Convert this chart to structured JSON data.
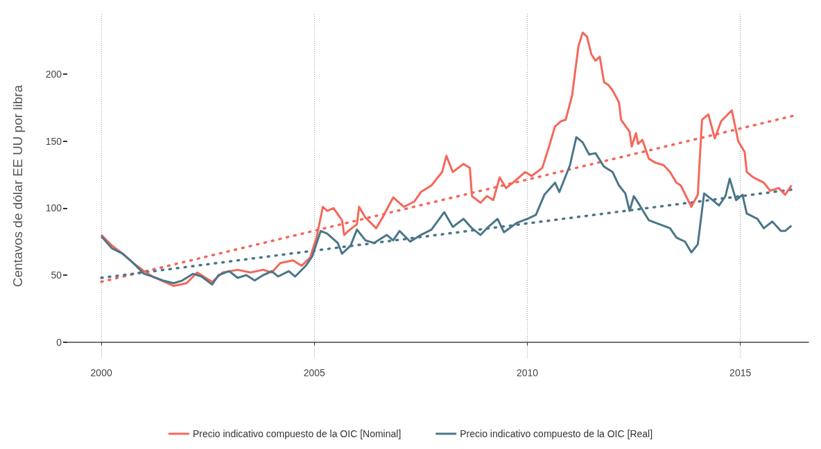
{
  "chart_data": {
    "type": "line",
    "ylabel": "Centavos de dólar EE UU por libra",
    "xlim": [
      1999.2,
      2016.6
    ],
    "xticks": [
      2000,
      2005,
      2010,
      2015
    ],
    "ylim": [
      -12,
      245
    ],
    "yticks": [
      0,
      50,
      100,
      150,
      200
    ],
    "grid": "x",
    "legend": "bottom",
    "marker": "none",
    "series": [
      {
        "name": "Precio indicativo compuesto de la OIC [Nominal]",
        "color": "#f4675a",
        "line_style": "solid",
        "x": [
          2000.0,
          2000.25,
          2000.5,
          2000.75,
          2001.0,
          2001.2,
          2001.55,
          2001.7,
          2002.0,
          2002.25,
          2002.6,
          2002.85,
          2003.2,
          2003.5,
          2003.8,
          2004.0,
          2004.2,
          2004.5,
          2004.7,
          2004.9,
          2005.05,
          2005.2,
          2005.3,
          2005.45,
          2005.65,
          2005.7,
          2005.8,
          2006.0,
          2006.05,
          2006.2,
          2006.45,
          2006.6,
          2006.85,
          2007.1,
          2007.35,
          2007.5,
          2007.75,
          2008.0,
          2008.1,
          2008.25,
          2008.5,
          2008.65,
          2008.7,
          2008.9,
          2009.05,
          2009.2,
          2009.35,
          2009.5,
          2009.7,
          2009.95,
          2010.1,
          2010.35,
          2010.5,
          2010.65,
          2010.8,
          2010.9,
          2011.05,
          2011.2,
          2011.3,
          2011.4,
          2011.5,
          2011.6,
          2011.7,
          2011.8,
          2011.9,
          2012.0,
          2012.15,
          2012.2,
          2012.4,
          2012.45,
          2012.55,
          2012.6,
          2012.7,
          2012.85,
          2013.0,
          2013.2,
          2013.35,
          2013.5,
          2013.6,
          2013.85,
          2014.0,
          2014.1,
          2014.25,
          2014.4,
          2014.55,
          2014.8,
          2014.95,
          2015.1,
          2015.15,
          2015.3,
          2015.55,
          2015.7,
          2015.9,
          2016.05,
          2016.2
        ],
        "values": [
          80,
          72,
          66,
          59,
          53,
          49,
          44,
          42,
          44,
          52,
          45,
          52,
          54,
          52,
          54,
          52,
          59,
          61,
          57,
          63,
          78,
          101,
          98,
          100,
          91,
          80,
          83,
          88,
          101,
          93,
          85,
          93,
          108,
          101,
          105,
          112,
          117,
          127,
          139,
          127,
          133,
          130,
          109,
          104,
          109,
          106,
          123,
          115,
          120,
          127,
          124,
          130,
          145,
          161,
          165,
          166,
          184,
          221,
          231,
          228,
          215,
          210,
          213,
          194,
          192,
          188,
          179,
          166,
          157,
          146,
          156,
          148,
          151,
          137,
          134,
          132,
          127,
          119,
          117,
          101,
          110,
          166,
          170,
          152,
          165,
          173,
          150,
          142,
          127,
          123,
          119,
          113,
          115,
          110,
          117
        ]
      },
      {
        "name": "Precio indicativo compuesto de la OIC [Real]",
        "color": "#4a7688",
        "line_style": "solid",
        "x": [
          2000.0,
          2000.25,
          2000.5,
          2000.75,
          2001.0,
          2001.2,
          2001.45,
          2001.7,
          2001.9,
          2002.15,
          2002.35,
          2002.6,
          2002.75,
          2003.0,
          2003.2,
          2003.4,
          2003.6,
          2003.8,
          2004.0,
          2004.15,
          2004.4,
          2004.55,
          2004.8,
          2004.95,
          2005.15,
          2005.3,
          2005.55,
          2005.65,
          2005.85,
          2006.0,
          2006.2,
          2006.4,
          2006.7,
          2006.85,
          2007.0,
          2007.25,
          2007.5,
          2007.75,
          2008.05,
          2008.25,
          2008.5,
          2008.7,
          2008.9,
          2009.05,
          2009.3,
          2009.45,
          2009.75,
          2010.0,
          2010.2,
          2010.4,
          2010.65,
          2010.75,
          2011.0,
          2011.15,
          2011.3,
          2011.45,
          2011.6,
          2011.8,
          2012.0,
          2012.15,
          2012.3,
          2012.4,
          2012.5,
          2012.6,
          2012.85,
          2013.1,
          2013.35,
          2013.5,
          2013.7,
          2013.85,
          2014.0,
          2014.15,
          2014.35,
          2014.5,
          2014.65,
          2014.75,
          2014.9,
          2015.05,
          2015.15,
          2015.4,
          2015.55,
          2015.75,
          2015.95,
          2016.05,
          2016.2
        ],
        "values": [
          79,
          70,
          66,
          59,
          51,
          49,
          46,
          44,
          46,
          51,
          49,
          43,
          50,
          53,
          48,
          50,
          46,
          50,
          53,
          49,
          53,
          49,
          57,
          64,
          83,
          81,
          74,
          66,
          72,
          84,
          76,
          74,
          80,
          76,
          83,
          75,
          80,
          84,
          97,
          86,
          92,
          85,
          80,
          85,
          92,
          82,
          89,
          92,
          95,
          110,
          119,
          112,
          132,
          153,
          149,
          140,
          141,
          131,
          127,
          117,
          111,
          98,
          109,
          104,
          91,
          88,
          85,
          78,
          75,
          67,
          73,
          111,
          106,
          102,
          109,
          122,
          106,
          110,
          96,
          92,
          85,
          90,
          83,
          83,
          87
        ]
      },
      {
        "color": "#f4675a",
        "line_style": "dotted",
        "x": [
          2000.0,
          2016.25
        ],
        "values": [
          45,
          169
        ]
      },
      {
        "color": "#4a7688",
        "line_style": "dotted",
        "x": [
          2000.0,
          2016.25
        ],
        "values": [
          48,
          114
        ]
      }
    ]
  }
}
